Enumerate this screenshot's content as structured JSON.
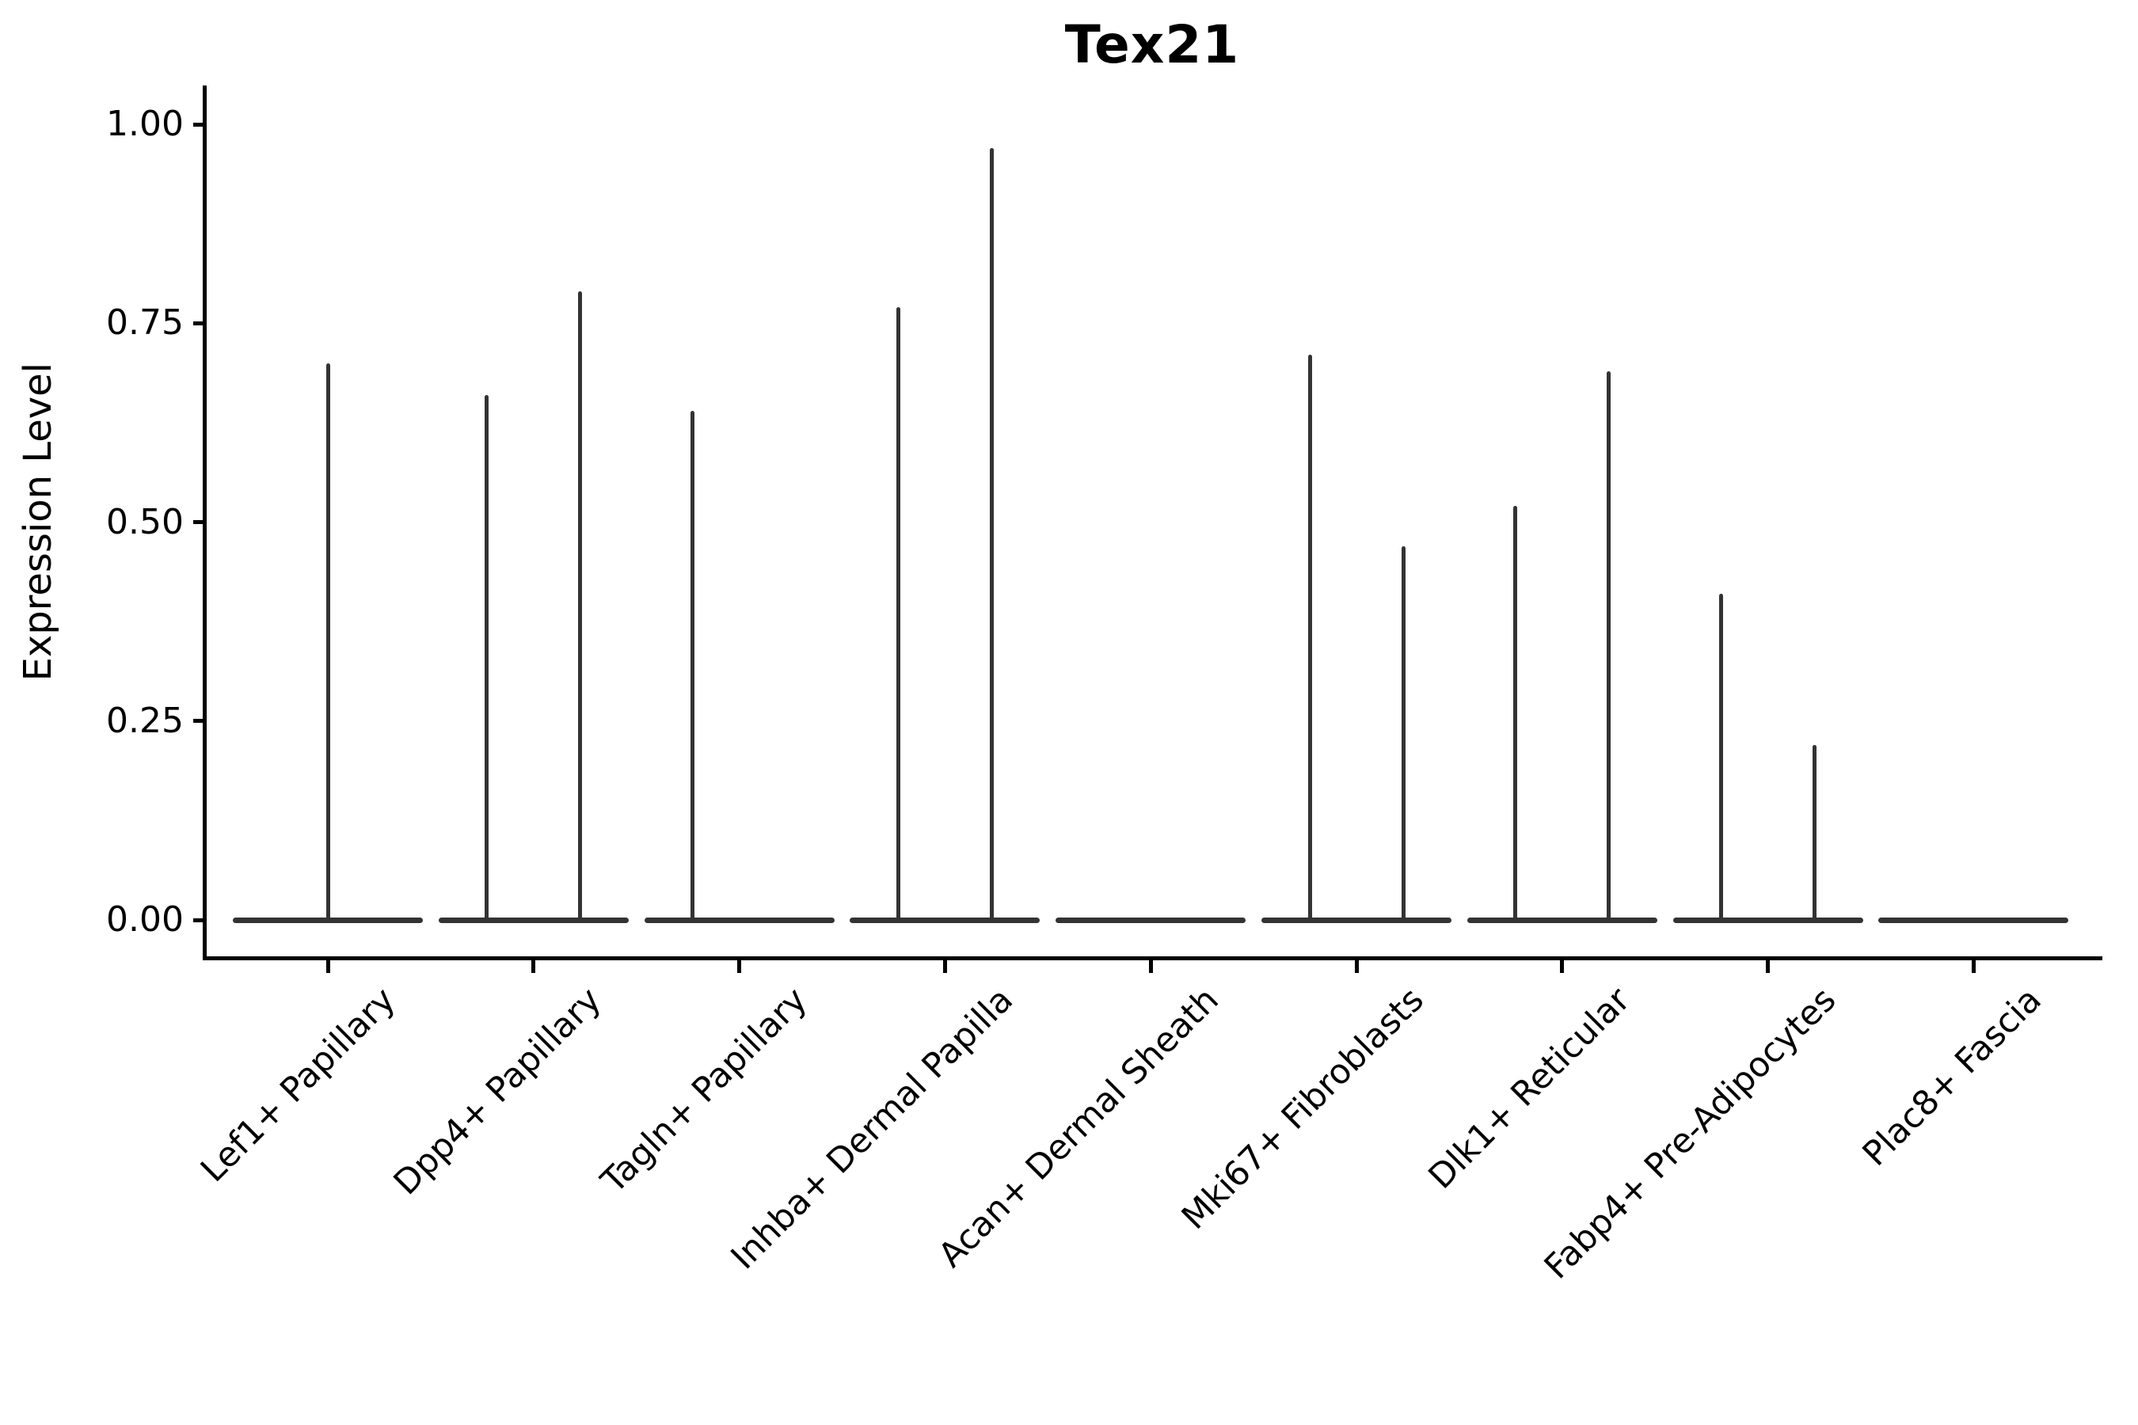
{
  "chart_data": {
    "type": "violin",
    "title": "Tex21",
    "xlabel": "",
    "ylabel": "Expression Level",
    "ylim": [
      0.0,
      1.0
    ],
    "yticks": [
      "1.00",
      "0.75",
      "0.50",
      "0.25",
      "0.00"
    ],
    "ytick_values": [
      1.0,
      0.75,
      0.5,
      0.25,
      0.0
    ],
    "grid": false,
    "legend": "none",
    "outline_color": "#333333",
    "axis_color": "#000000",
    "description": "Violin plot of Tex21 expression; every cluster has a dense flat mass at 0 with thin needle-like density spikes reaching the listed maxima.",
    "categories": [
      {
        "label": "Lef1+ Papillary",
        "baseline_value": 0.0,
        "spikes": [
          {
            "position": "center",
            "value": 0.7
          }
        ]
      },
      {
        "label": "Dpp4+ Papillary",
        "baseline_value": 0.0,
        "spikes": [
          {
            "position": "left",
            "value": 0.66
          },
          {
            "position": "right",
            "value": 0.79
          }
        ]
      },
      {
        "label": "Tagln+ Papillary",
        "baseline_value": 0.0,
        "spikes": [
          {
            "position": "left",
            "value": 0.64
          }
        ]
      },
      {
        "label": "Inhba+ Dermal Papilla",
        "baseline_value": 0.0,
        "spikes": [
          {
            "position": "left",
            "value": 0.77
          },
          {
            "position": "right",
            "value": 0.97
          }
        ]
      },
      {
        "label": "Acan+ Dermal Sheath",
        "baseline_value": 0.0,
        "spikes": []
      },
      {
        "label": "Mki67+ Fibroblasts",
        "baseline_value": 0.0,
        "spikes": [
          {
            "position": "left",
            "value": 0.71
          },
          {
            "position": "right",
            "value": 0.47
          }
        ]
      },
      {
        "label": "Dlk1+ Reticular",
        "baseline_value": 0.0,
        "spikes": [
          {
            "position": "left",
            "value": 0.52
          },
          {
            "position": "right",
            "value": 0.69
          }
        ]
      },
      {
        "label": "Fabp4+ Pre-Adipocytes",
        "baseline_value": 0.0,
        "spikes": [
          {
            "position": "left",
            "value": 0.41
          },
          {
            "position": "right",
            "value": 0.22
          }
        ]
      },
      {
        "label": "Plac8+ Fascia",
        "baseline_value": 0.0,
        "spikes": []
      }
    ]
  }
}
